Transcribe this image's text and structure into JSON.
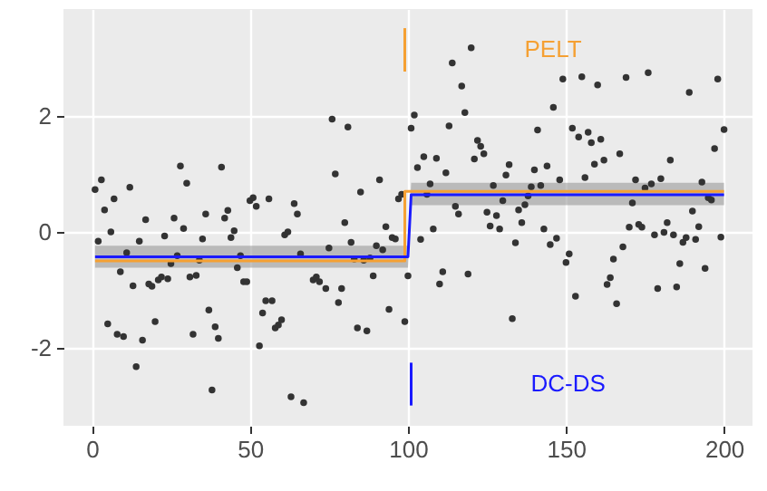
{
  "chart_data": {
    "type": "scatter",
    "xlim": [
      -9,
      209
    ],
    "ylim": [
      -3.35,
      3.85
    ],
    "xticks": [
      0,
      50,
      100,
      150,
      200
    ],
    "yticks": [
      -2,
      0,
      2
    ],
    "grid": true,
    "line_style": "solid",
    "series": [
      {
        "marker": "circle",
        "color": "#333333",
        "x": [
          1,
          2,
          3,
          4,
          5,
          6,
          7,
          8,
          9,
          10,
          11,
          12,
          13,
          14,
          15,
          16,
          17,
          18,
          19,
          20,
          21,
          22,
          23,
          24,
          25,
          26,
          27,
          28,
          29,
          30,
          31,
          32,
          33,
          34,
          35,
          36,
          37,
          38,
          39,
          40,
          41,
          42,
          43,
          44,
          45,
          46,
          47,
          48,
          49,
          50,
          51,
          52,
          53,
          54,
          55,
          56,
          57,
          58,
          59,
          60,
          61,
          62,
          63,
          64,
          65,
          66,
          67,
          70,
          71,
          72,
          74,
          75,
          76,
          77,
          78,
          79,
          80,
          81,
          82,
          83,
          84,
          85,
          86,
          87,
          88,
          89,
          90,
          91,
          92,
          93,
          94,
          95,
          96,
          97,
          98,
          99,
          100,
          101,
          102,
          103,
          104,
          105,
          106,
          107,
          108,
          109,
          110,
          111,
          112,
          113,
          114,
          115,
          116,
          117,
          118,
          119,
          120,
          121,
          122,
          123,
          124,
          125,
          126,
          127,
          128,
          129,
          130,
          131,
          132,
          133,
          134,
          135,
          136,
          137,
          138,
          139,
          140,
          141,
          142,
          143,
          144,
          145,
          146,
          147,
          148,
          149,
          150,
          151,
          152,
          153,
          154,
          155,
          156,
          157,
          158,
          159,
          160,
          161,
          162,
          163,
          164,
          165,
          166,
          167,
          168,
          169,
          170,
          171,
          172,
          173,
          174,
          175,
          176,
          177,
          178,
          179,
          180,
          181,
          182,
          183,
          184,
          185,
          186,
          187,
          188,
          189,
          190,
          191,
          192,
          193,
          194,
          195,
          196,
          197,
          198,
          199,
          200
        ],
        "values": [
          0.73,
          -0.16,
          0.9,
          0.38,
          -1.59,
          0.0,
          0.57,
          -1.77,
          -0.69,
          -1.81,
          -0.36,
          0.77,
          -0.93,
          -2.33,
          -0.16,
          -1.87,
          0.21,
          -0.9,
          -0.94,
          -1.55,
          -0.83,
          -0.78,
          -0.07,
          -0.81,
          -0.55,
          0.24,
          -0.41,
          1.14,
          0.06,
          0.84,
          -0.78,
          -1.77,
          -0.75,
          -0.49,
          -0.12,
          0.31,
          -1.35,
          -2.73,
          -1.64,
          -1.84,
          1.12,
          0.24,
          0.37,
          -0.1,
          0.02,
          -0.62,
          -0.41,
          -0.86,
          -0.86,
          0.54,
          0.59,
          0.44,
          -1.97,
          -1.4,
          -1.19,
          0.57,
          -1.19,
          -1.66,
          -1.61,
          -1.52,
          -0.05,
          0.0,
          -2.85,
          0.49,
          0.31,
          -0.38,
          -2.95,
          -0.83,
          -0.78,
          -0.86,
          -0.98,
          -0.28,
          1.95,
          1.0,
          -1.22,
          -0.98,
          0.16,
          1.81,
          -0.18,
          -0.47,
          -1.66,
          0.69,
          -0.49,
          -1.71,
          -0.45,
          -0.76,
          -0.24,
          0.9,
          -0.31,
          0.09,
          -1.34,
          -0.1,
          -0.12,
          0.57,
          0.65,
          -1.55,
          -0.76,
          1.79,
          2.02,
          1.11,
          -0.13,
          1.3,
          0.65,
          0.83,
          0.05,
          1.27,
          -0.9,
          -0.69,
          1.02,
          1.83,
          2.92,
          0.44,
          0.31,
          2.52,
          2.06,
          -0.73,
          3.18,
          1.26,
          1.58,
          1.48,
          1.35,
          0.34,
          0.1,
          0.8,
          0.28,
          0.05,
          0.54,
          0.98,
          1.16,
          -1.5,
          -0.19,
          0.38,
          0.16,
          0.47,
          0.62,
          0.78,
          1.07,
          1.76,
          0.8,
          0.05,
          1.14,
          -0.22,
          2.15,
          -0.11,
          0.9,
          2.64,
          -0.53,
          -0.38,
          1.79,
          -1.11,
          1.64,
          2.68,
          0.94,
          1.72,
          1.54,
          1.17,
          2.54,
          1.6,
          1.24,
          -0.91,
          -0.79,
          -0.47,
          -1.24,
          1.35,
          -0.26,
          2.67,
          0.08,
          0.5,
          0.9,
          0.13,
          0.08,
          0.76,
          2.75,
          0.83,
          -0.05,
          -0.98,
          0.92,
          -0.01,
          0.16,
          1.24,
          -0.05,
          -0.95,
          -0.55,
          -0.18,
          -0.1,
          2.41,
          0.36,
          -0.13,
          0.09,
          0.86,
          -0.63,
          0.59,
          0.55,
          1.44,
          2.64,
          -0.09,
          1.77
        ]
      },
      {
        "type": "line",
        "color": "#f5a033",
        "x": [
          1,
          99,
          99,
          200
        ],
        "values": [
          -0.5,
          -0.5,
          0.7,
          0.7
        ]
      },
      {
        "type": "line",
        "color": "#1a1aff",
        "x": [
          1,
          100,
          101,
          200
        ],
        "values": [
          -0.43,
          -0.43,
          0.64,
          0.64
        ],
        "lower": [
          -0.62,
          -0.62,
          0.46,
          0.46
        ],
        "upper": [
          -0.24,
          -0.24,
          0.85,
          0.85
        ]
      },
      {
        "type": "line",
        "name": "PELT",
        "color": "#f5a033",
        "x": [
          99,
          99
        ],
        "values": [
          2.77,
          3.52
        ]
      },
      {
        "type": "line",
        "name": "DC-DS",
        "color": "#1a1aff",
        "x": [
          101,
          101
        ],
        "values": [
          -2.26,
          -3.0
        ]
      }
    ]
  }
}
